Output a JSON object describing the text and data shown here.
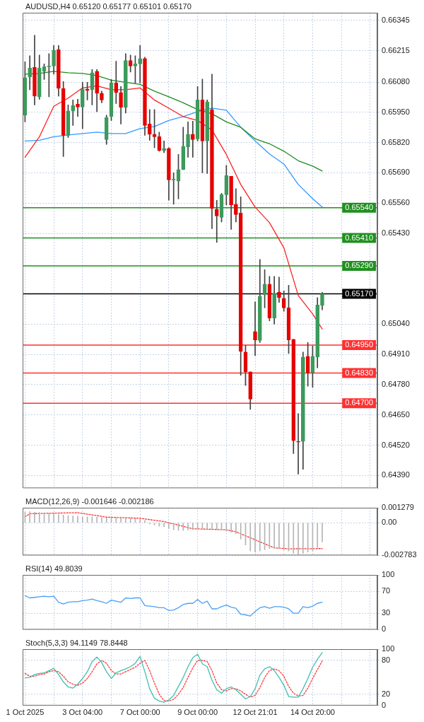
{
  "chart_data": [
    {
      "type": "candlestick",
      "title": "AUDUSD,H4 0.65120 0.65177 0.65101 0.65170",
      "categories": [
        null,
        null,
        null,
        null,
        null,
        null,
        null,
        null,
        null,
        null,
        null,
        null,
        null,
        null,
        null,
        null,
        null,
        null,
        null,
        null,
        null,
        null,
        null,
        null,
        null,
        null,
        null,
        null,
        null,
        null,
        null,
        null,
        null,
        null,
        null,
        null,
        null,
        null,
        null,
        null,
        null,
        null,
        null,
        null,
        null,
        null,
        null,
        null,
        null,
        null,
        null,
        null,
        null,
        null,
        null,
        null,
        null,
        null,
        null,
        null,
        null,
        null,
        null,
        null,
        null,
        null,
        null,
        null,
        null,
        null,
        null,
        null,
        null,
        null
      ],
      "ohlc": [
        [
          0.65938,
          0.66167,
          0.65909,
          0.66099
        ],
        [
          0.66102,
          0.66193,
          0.66047,
          0.6614
        ],
        [
          0.66143,
          0.66281,
          0.65982,
          0.6602
        ],
        [
          0.66017,
          0.66196,
          0.66006,
          0.6614
        ],
        [
          0.66126,
          0.66158,
          0.66091,
          0.66146
        ],
        [
          0.66146,
          0.66202,
          0.66017,
          0.66149
        ],
        [
          0.66149,
          0.66237,
          0.66114,
          0.66216
        ],
        [
          0.66219,
          0.66237,
          0.6602,
          0.66053
        ],
        [
          0.66053,
          0.66082,
          0.6576,
          0.65851
        ],
        [
          0.65851,
          0.65982,
          0.65842,
          0.65956
        ],
        [
          0.65956,
          0.66003,
          0.65894,
          0.65979
        ],
        [
          0.65985,
          0.66006,
          0.65932,
          0.65973
        ],
        [
          0.65973,
          0.66079,
          0.6588,
          0.6605
        ],
        [
          0.6605,
          0.66079,
          0.66003,
          0.66044
        ],
        [
          0.66047,
          0.66134,
          0.65982,
          0.6612
        ],
        [
          0.66126,
          0.66134,
          0.65953,
          0.66032
        ],
        [
          0.66032,
          0.66041,
          0.65991,
          0.66003
        ],
        [
          0.65833,
          0.65938,
          0.65812,
          0.65927
        ],
        [
          0.65932,
          0.66091,
          0.65915,
          0.66076
        ],
        [
          0.66076,
          0.6617,
          0.65988,
          0.66035
        ],
        [
          0.66035,
          0.66061,
          0.659,
          0.65971
        ],
        [
          0.65971,
          0.66202,
          0.65947,
          0.66173
        ],
        [
          0.66173,
          0.66196,
          0.66123,
          0.66149
        ],
        [
          0.66149,
          0.66193,
          0.66076,
          0.66158
        ],
        [
          0.66158,
          0.66237,
          0.66076,
          0.66181
        ],
        [
          0.66181,
          0.66187,
          0.65851,
          0.65894
        ],
        [
          0.659,
          0.65962,
          0.6583,
          0.65856
        ],
        [
          0.65856,
          0.65962,
          0.65798,
          0.65845
        ],
        [
          0.65845,
          0.65865,
          0.65783,
          0.65786
        ],
        [
          0.65786,
          0.65827,
          0.65777,
          0.65795
        ],
        [
          0.65795,
          0.65798,
          0.65572,
          0.6566
        ],
        [
          0.6566,
          0.6569,
          0.65555,
          0.6566
        ],
        [
          0.65654,
          0.65769,
          0.65578,
          0.65704
        ],
        [
          0.65704,
          0.65886,
          0.65704,
          0.65804
        ],
        [
          0.65801,
          0.65909,
          0.65757,
          0.65856
        ],
        [
          0.65856,
          0.65912,
          0.65757,
          0.65833
        ],
        [
          0.65836,
          0.66061,
          0.65827,
          0.66003
        ],
        [
          0.66003,
          0.66093,
          0.6569,
          0.65827
        ],
        [
          0.65827,
          0.66003,
          0.65687,
          0.65994
        ],
        [
          0.65962,
          0.66114,
          0.6545,
          0.65537
        ],
        [
          0.65534,
          0.65572,
          0.65391,
          0.65505
        ],
        [
          0.65499,
          0.65602,
          0.65479,
          0.65596
        ],
        [
          0.65596,
          0.65722,
          0.65552,
          0.65678
        ],
        [
          0.65675,
          0.65675,
          0.65447,
          0.65552
        ],
        [
          0.65555,
          0.65622,
          0.65479,
          0.65511
        ],
        [
          0.65517,
          0.65587,
          0.6482,
          0.64923
        ],
        [
          0.6492,
          0.64949,
          0.64776,
          0.64835
        ],
        [
          0.64835,
          0.64835,
          0.64674,
          0.64718
        ],
        [
          0.65008,
          0.65136,
          0.64905,
          0.64972
        ],
        [
          0.6497,
          0.65318,
          0.64961,
          0.6516
        ],
        [
          0.65166,
          0.65274,
          0.6511,
          0.65212
        ],
        [
          0.65212,
          0.65245,
          0.65054,
          0.65066
        ],
        [
          0.65066,
          0.65245,
          0.6504,
          0.65171
        ],
        [
          0.65177,
          0.65242,
          0.65133,
          0.65154
        ],
        [
          0.65151,
          0.65183,
          0.65095,
          0.6511
        ],
        [
          0.6511,
          0.65207,
          0.64914,
          0.64972
        ],
        [
          0.64975,
          0.64975,
          0.64484,
          0.64539
        ],
        [
          0.64536,
          0.64656,
          0.64396,
          0.64533
        ],
        [
          0.64536,
          0.6492,
          0.64416,
          0.64899
        ],
        [
          0.64902,
          0.64961,
          0.64773,
          0.64832
        ],
        [
          0.64832,
          0.64946,
          0.64768,
          0.64902
        ],
        [
          0.64899,
          0.65154,
          0.64852,
          0.65122
        ],
        [
          0.6512,
          0.65177,
          0.65101,
          0.6517
        ],
        null,
        null,
        null,
        null,
        null,
        null,
        null,
        null,
        null,
        null,
        null
      ],
      "colors": [
        "#3c9a5c",
        "#3c9a5c",
        "#e60000",
        "#3c9a5c",
        "#3c9a5c",
        "#3c9a5c",
        "#3c9a5c",
        "#e60000",
        "#e60000",
        "#3c9a5c",
        "#3c9a5c",
        "#e60000",
        "#3c9a5c",
        "#e60000",
        "#3c9a5c",
        "#e60000",
        "#e60000",
        "#3c9a5c",
        "#3c9a5c",
        "#e60000",
        "#e60000",
        "#3c9a5c",
        "#e60000",
        "#3c9a5c",
        "#3c9a5c",
        "#e60000",
        "#e60000",
        "#e60000",
        "#e60000",
        "#3c9a5c",
        "#e60000",
        "#3c9a5c",
        "#3c9a5c",
        "#3c9a5c",
        "#3c9a5c",
        "#e60000",
        "#3c9a5c",
        "#e60000",
        "#3c9a5c",
        "#e60000",
        "#e60000",
        "#3c9a5c",
        "#3c9a5c",
        "#e60000",
        "#e60000",
        "#e60000",
        "#e60000",
        "#e60000",
        "#e60000",
        "#3c9a5c",
        "#3c9a5c",
        "#e60000",
        "#3c9a5c",
        "#e60000",
        "#e60000",
        "#e60000",
        "#e60000",
        "#e60000",
        "#3c9a5c",
        "#e60000",
        "#3c9a5c",
        "#3c9a5c",
        "#3c9a5c",
        null,
        null,
        null,
        null,
        null,
        null,
        null,
        null,
        null,
        null,
        null
      ],
      "series": [
        {
          "type": "line",
          "color": "#ff2020",
          "values": [
            0.65757,
            null,
            null,
            0.65845,
            null,
            null,
            0.65976,
            null,
            null,
            0.66011,
            null,
            null,
            0.66055,
            null,
            null,
            0.66064,
            null,
            null,
            0.66047,
            null,
            null,
            0.66047,
            null,
            null,
            0.66055,
            null,
            null,
            0.66003,
            null,
            null,
            0.65968,
            null,
            null,
            0.65932,
            null,
            null,
            0.65915,
            null,
            null,
            0.65874,
            null,
            null,
            0.65769,
            null,
            null,
            0.6564,
            null,
            null,
            0.65543,
            null,
            null,
            0.65476,
            null,
            null,
            0.65368,
            null,
            null,
            0.65163,
            null,
            null,
            0.65084,
            null,
            0.65019,
            null,
            null,
            null,
            null,
            null,
            null,
            null,
            null,
            null,
            null,
            null
          ]
        },
        {
          "type": "line",
          "color": "#1e8c1e",
          "values": [
            0.66114,
            null,
            null,
            0.66117,
            null,
            null,
            0.66126,
            null,
            null,
            0.6612,
            null,
            null,
            0.66117,
            null,
            null,
            0.66108,
            null,
            null,
            0.66088,
            null,
            null,
            0.66079,
            null,
            null,
            0.6607,
            null,
            null,
            0.66041,
            null,
            null,
            0.66017,
            null,
            null,
            0.65991,
            null,
            null,
            0.65962,
            null,
            null,
            0.65944,
            null,
            null,
            0.65909,
            null,
            null,
            0.65886,
            null,
            null,
            0.65836,
            null,
            null,
            0.65815,
            null,
            null,
            0.65783,
            null,
            null,
            0.65742,
            null,
            null,
            0.65719,
            null,
            0.65698,
            null,
            null,
            null,
            null,
            null,
            null,
            null,
            null,
            null,
            null,
            null
          ]
        },
        {
          "type": "line",
          "color": "#3399ff",
          "values": [
            0.65827,
            null,
            null,
            0.6583,
            null,
            null,
            0.65845,
            null,
            null,
            0.65853,
            null,
            null,
            0.65859,
            null,
            null,
            0.65865,
            null,
            null,
            0.65859,
            null,
            null,
            0.65859,
            null,
            null,
            0.6588,
            null,
            null,
            0.65889,
            null,
            null,
            0.65915,
            null,
            null,
            0.65932,
            null,
            null,
            0.65953,
            null,
            null,
            0.65968,
            null,
            null,
            0.65959,
            null,
            null,
            0.65886,
            null,
            null,
            0.65827,
            null,
            null,
            0.65771,
            null,
            null,
            0.65728,
            null,
            null,
            0.6564,
            null,
            null,
            0.65579,
            null,
            0.65543,
            null,
            null,
            null,
            null,
            null,
            null,
            null,
            null,
            null,
            null,
            null
          ]
        }
      ],
      "ylim": [
        0.64335,
        0.66378
      ],
      "yticks": [
        0.66345,
        0.66215,
        {
          "value": 0.6608,
          "label": "0.66080"
        },
        {
          "value": 0.6595,
          "label": "0.65950"
        },
        {
          "value": 0.6582,
          "label": "0.65820"
        },
        {
          "value": 0.6569,
          "label": "0.65690"
        },
        {
          "value": 0.6556,
          "label": "0.65560"
        },
        {
          "value": 0.6543,
          "label": "0.65430"
        },
        {
          "value": 0.6504,
          "label": "0.65040"
        },
        {
          "value": 0.6491,
          "label": "0.64910"
        },
        {
          "value": 0.6478,
          "label": "0.64780"
        },
        {
          "value": 0.6465,
          "label": "0.64650"
        },
        {
          "value": 0.6452,
          "label": "0.64520"
        },
        {
          "value": 0.6439,
          "label": "0.64390"
        }
      ],
      "ref_lines": [
        {
          "axis": "y",
          "value": 0.6554,
          "label": "0.65540",
          "color": "#1f8f1f"
        },
        {
          "axis": "y",
          "value": 0.6541,
          "label": "0.65410",
          "color": "#1f8f1f"
        },
        {
          "axis": "y",
          "value": 0.6529,
          "label": "0.65290",
          "color": "#1f8f1f"
        },
        {
          "axis": "y",
          "value": 0.6517,
          "label": "0.65170",
          "color": "#000000"
        },
        {
          "axis": "y",
          "value": 0.6495,
          "label": "0.64950",
          "color": "#ff3030"
        },
        {
          "axis": "y",
          "value": 0.6483,
          "label": "0.64830",
          "color": "#ff3030"
        },
        {
          "axis": "y",
          "value": 0.647,
          "label": "0.64700",
          "color": "#ff3030"
        }
      ],
      "grid": true,
      "tick_labels": "y",
      "marker": "none"
    },
    {
      "type": "bar",
      "title": "MACD(12,26,9) -0.001646 -0.002186",
      "categories": [
        null,
        null,
        null,
        null,
        null,
        null,
        null,
        null,
        null,
        null,
        null,
        null,
        null,
        null,
        null,
        null,
        null,
        null,
        null,
        null,
        null,
        null,
        null,
        null,
        null,
        null,
        null,
        null,
        null,
        null,
        null,
        null,
        null,
        null,
        null,
        null,
        null,
        null,
        null,
        null,
        null,
        null,
        null,
        null,
        null,
        null,
        null,
        null,
        null,
        null,
        null,
        null,
        null,
        null,
        null,
        null,
        null,
        null,
        null,
        null,
        null,
        null,
        null,
        null,
        null,
        null,
        null,
        null,
        null,
        null,
        null,
        null,
        null,
        null
      ],
      "series": [
        {
          "type": "bar",
          "color": "#b4b4b4",
          "values": [
            0.0009,
            0.00095,
            0.0009,
            0.00088,
            0.00085,
            0.0008,
            0.0007,
            0.00068,
            0.00065,
            0.0006,
            0.00058,
            0.00055,
            0.00052,
            0.0005,
            0.0005,
            0.00048,
            0.00045,
            0.00042,
            0.0004,
            0.0004,
            0.00042,
            0.0004,
            0.00038,
            0.00036,
            0.00032,
            0.0002,
            -0.0001,
            -0.0002,
            -0.0003,
            -0.00035,
            -0.0005,
            -0.0006,
            -0.00065,
            -0.00066,
            -0.00062,
            -0.0006,
            -0.00055,
            -0.0005,
            -0.00052,
            -0.00055,
            -0.0006,
            -0.0006,
            -0.0007,
            -0.0008,
            -0.00095,
            -0.0014,
            -0.0019,
            -0.0024,
            -0.0025,
            -0.0024,
            -0.0023,
            -0.0022,
            -0.0022,
            -0.0022,
            -0.0023,
            -0.0024,
            -0.0026,
            -0.0027,
            -0.0026,
            -0.0025,
            -0.0024,
            -0.0021,
            -0.001646,
            null,
            null,
            null,
            null,
            null,
            null,
            null,
            null,
            null,
            null,
            null
          ]
        },
        {
          "type": "line",
          "color": "#ff3030",
          "line_style": "dotted",
          "values": [
            0.00051,
            0.00077,
            null,
            null,
            null,
            null,
            null,
            null,
            null,
            null,
            null,
            0.00086,
            null,
            null,
            null,
            null,
            null,
            0.00048,
            null,
            null,
            null,
            null,
            null,
            null,
            0.00038,
            null,
            null,
            null,
            null,
            0.0001,
            null,
            null,
            null,
            null,
            null,
            -0.00051,
            null,
            null,
            null,
            null,
            null,
            null,
            -0.0006,
            null,
            -0.00077,
            null,
            null,
            null,
            -0.00145,
            null,
            null,
            null,
            -0.00214,
            null,
            null,
            -0.00222,
            null,
            null,
            null,
            null,
            null,
            null,
            -0.0022,
            null,
            null,
            null,
            null,
            null,
            null,
            null,
            null,
            null,
            null,
            null
          ]
        }
      ],
      "ylim": [
        -0.002783,
        0.001279
      ],
      "yticks": [
        -0.002783,
        {
          "value": 0,
          "label": "0.00"
        },
        0.001279
      ],
      "grid": true,
      "tick_labels": "y",
      "marker": "none"
    },
    {
      "type": "line",
      "title": "RSI(14) 49.8039",
      "categories": [
        null,
        null,
        null,
        null,
        null,
        null,
        null,
        null,
        null,
        null,
        null,
        null,
        null,
        null,
        null,
        null,
        null,
        null,
        null,
        null,
        null,
        null,
        null,
        null,
        null,
        null,
        null,
        null,
        null,
        null,
        null,
        null,
        null,
        null,
        null,
        null,
        null,
        null,
        null,
        null,
        null,
        null,
        null,
        null,
        null,
        null,
        null,
        null,
        null,
        null,
        null,
        null,
        null,
        null,
        null,
        null,
        null,
        null,
        null,
        null,
        null,
        null,
        null,
        null,
        null,
        null,
        null,
        null,
        null,
        null,
        null,
        null,
        null,
        null
      ],
      "series": [
        {
          "color": "#4a9ff5",
          "values": [
            62,
            58,
            59,
            60,
            61,
            60,
            61,
            50,
            47,
            50,
            51,
            51,
            53,
            54,
            56,
            53,
            51,
            48,
            54,
            52,
            50,
            58,
            57,
            58,
            58,
            44,
            43,
            42,
            40,
            40,
            35,
            36,
            40,
            46,
            48,
            48,
            55,
            48,
            52,
            38,
            38,
            42,
            45,
            41,
            39,
            28,
            27,
            25,
            33,
            40,
            42,
            39,
            42,
            42,
            41,
            38,
            30,
            30,
            42,
            40,
            43,
            48,
            50,
            null,
            null,
            null,
            null,
            null,
            null,
            null,
            null,
            null,
            null,
            null
          ]
        }
      ],
      "ylim": [
        0,
        100
      ],
      "yticks": [
        0,
        30,
        70,
        100
      ],
      "grid": true,
      "tick_labels": "y",
      "marker": "none"
    },
    {
      "type": "line",
      "title": "Stoch(5,3,3) 94.1149 78.8448",
      "categories": [
        "1 Oct 2025",
        null,
        null,
        null,
        null,
        null,
        null,
        null,
        null,
        null,
        null,
        null,
        "3 Oct 04:00",
        null,
        null,
        null,
        null,
        null,
        null,
        null,
        null,
        null,
        null,
        null,
        "7 Oct 00:00",
        null,
        null,
        null,
        null,
        null,
        null,
        null,
        null,
        null,
        null,
        null,
        "9 Oct 00:00",
        null,
        null,
        null,
        null,
        null,
        null,
        null,
        null,
        null,
        null,
        null,
        "12 Oct 21:01",
        null,
        null,
        null,
        null,
        null,
        null,
        null,
        null,
        null,
        null,
        null,
        "14 Oct 20:00",
        null,
        null,
        null,
        null,
        null,
        null,
        null,
        null,
        null,
        null,
        null,
        null,
        null
      ],
      "series": [
        {
          "color": "#3fbfb0",
          "line_style": "solid",
          "values": [
            49,
            50,
            55,
            57,
            58,
            62,
            66,
            55,
            42,
            33,
            31,
            38,
            48,
            60,
            78,
            86,
            76,
            60,
            48,
            58,
            62,
            65,
            69,
            75,
            87,
            60,
            30,
            13,
            8,
            6,
            10,
            18,
            34,
            50,
            69,
            85,
            91,
            74,
            69,
            45,
            28,
            22,
            30,
            33,
            28,
            20,
            12,
            16,
            30,
            54,
            65,
            69,
            62,
            50,
            36,
            16,
            15,
            15,
            30,
            48,
            68,
            82,
            94,
            null,
            null,
            null,
            null,
            null,
            null,
            null,
            null,
            null,
            null,
            null
          ]
        },
        {
          "color": "#ff3b3b",
          "line_style": "dotted",
          "values": [
            57,
            52,
            52,
            55,
            56,
            60,
            62,
            60,
            52,
            42,
            38,
            36,
            40,
            48,
            60,
            74,
            80,
            75,
            62,
            56,
            56,
            60,
            64,
            68,
            75,
            80,
            62,
            40,
            20,
            9,
            8,
            11,
            20,
            32,
            50,
            67,
            80,
            80,
            78,
            62,
            40,
            28,
            26,
            30,
            30,
            26,
            20,
            15,
            18,
            32,
            50,
            62,
            65,
            62,
            52,
            34,
            22,
            17,
            18,
            31,
            48,
            64,
            79,
            null,
            null,
            null,
            null,
            null,
            null,
            null,
            null,
            null,
            null,
            null
          ]
        }
      ],
      "ylim": [
        0,
        100
      ],
      "yticks": [
        0,
        20,
        80,
        100
      ],
      "grid": true,
      "marker": "none"
    }
  ]
}
